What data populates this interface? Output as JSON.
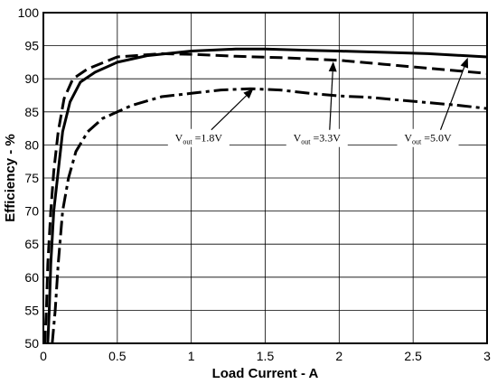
{
  "chart_data": {
    "type": "line",
    "title": "",
    "xlabel": "Load Current - A",
    "ylabel": "Efficiency - %",
    "xlim": [
      0,
      3
    ],
    "ylim": [
      50,
      100
    ],
    "x_ticks": [
      "0",
      "0.5",
      "1",
      "1.5",
      "2",
      "2.5",
      "3"
    ],
    "y_ticks": [
      "50",
      "55",
      "60",
      "65",
      "70",
      "75",
      "80",
      "85",
      "90",
      "95",
      "100"
    ],
    "grid": true,
    "series": [
      {
        "name": "Vout =1.8V",
        "style": "dash-dot",
        "color": "#000000",
        "points": [
          [
            0.06,
            50
          ],
          [
            0.08,
            55
          ],
          [
            0.1,
            62
          ],
          [
            0.13,
            70
          ],
          [
            0.17,
            75
          ],
          [
            0.22,
            79
          ],
          [
            0.3,
            82
          ],
          [
            0.4,
            84
          ],
          [
            0.6,
            86
          ],
          [
            0.8,
            87.3
          ],
          [
            1.0,
            87.8
          ],
          [
            1.2,
            88.3
          ],
          [
            1.4,
            88.5
          ],
          [
            1.6,
            88.3
          ],
          [
            1.8,
            87.8
          ],
          [
            2.0,
            87.4
          ],
          [
            2.2,
            87.2
          ],
          [
            2.5,
            86.6
          ],
          [
            2.8,
            86.0
          ],
          [
            3.0,
            85.5
          ]
        ]
      },
      {
        "name": "Vout =3.3V",
        "style": "solid",
        "color": "#000000",
        "points": [
          [
            0.03,
            50
          ],
          [
            0.04,
            55
          ],
          [
            0.05,
            62
          ],
          [
            0.07,
            70
          ],
          [
            0.1,
            76
          ],
          [
            0.13,
            82
          ],
          [
            0.18,
            86.5
          ],
          [
            0.25,
            89.5
          ],
          [
            0.35,
            91
          ],
          [
            0.5,
            92.5
          ],
          [
            0.7,
            93.5
          ],
          [
            1.0,
            94.2
          ],
          [
            1.3,
            94.5
          ],
          [
            1.5,
            94.5
          ],
          [
            1.8,
            94.3
          ],
          [
            2.0,
            94.2
          ],
          [
            2.3,
            94.0
          ],
          [
            2.6,
            93.8
          ],
          [
            3.0,
            93.3
          ]
        ]
      },
      {
        "name": "Vout =5.0V",
        "style": "dashed",
        "color": "#000000",
        "points": [
          [
            0.01,
            50
          ],
          [
            0.02,
            55
          ],
          [
            0.03,
            62
          ],
          [
            0.05,
            70
          ],
          [
            0.07,
            76
          ],
          [
            0.1,
            82
          ],
          [
            0.14,
            87
          ],
          [
            0.2,
            90
          ],
          [
            0.3,
            91.5
          ],
          [
            0.5,
            93.3
          ],
          [
            0.8,
            93.8
          ],
          [
            1.0,
            93.7
          ],
          [
            1.3,
            93.4
          ],
          [
            1.6,
            93.2
          ],
          [
            2.0,
            92.8
          ],
          [
            2.3,
            92.2
          ],
          [
            2.6,
            91.6
          ],
          [
            3.0,
            90.8
          ]
        ]
      }
    ],
    "annotations": [
      {
        "base": "V",
        "sub": "out",
        "rest": " =1.8V",
        "text_at": [
          1.05,
          80.5
        ],
        "arrow_to": [
          1.42,
          88.5
        ]
      },
      {
        "base": "V",
        "sub": "out",
        "rest": " =3.3V",
        "text_at": [
          1.85,
          80.5
        ],
        "arrow_to": [
          1.96,
          92.6
        ]
      },
      {
        "base": "V",
        "sub": "out",
        "rest": " =5.0V",
        "text_at": [
          2.6,
          80.5
        ],
        "arrow_to": [
          2.87,
          93.2
        ]
      }
    ]
  }
}
